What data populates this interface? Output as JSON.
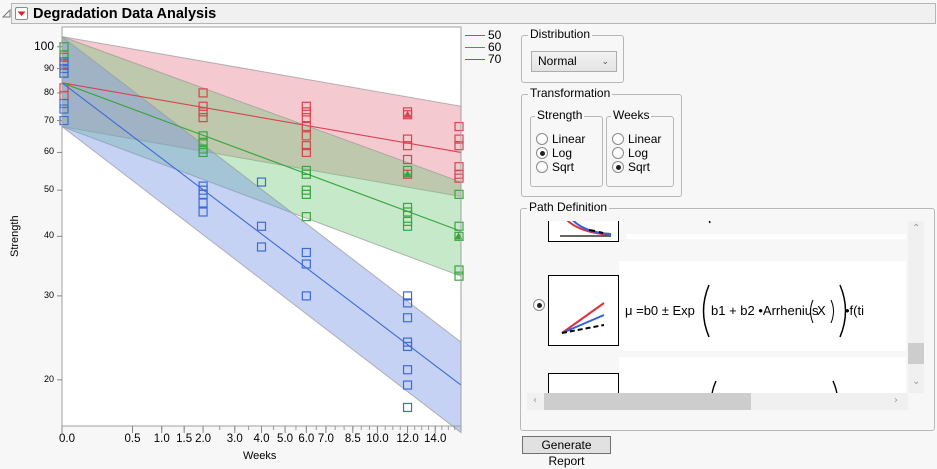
{
  "header": {
    "title": "Degradation Data Analysis",
    "disclosure_icon": "triangle-expanded-icon",
    "menu_icon": "red-triangle-menu-icon"
  },
  "chart_data": {
    "type": "line",
    "title": "",
    "xlabel": "Weeks",
    "ylabel": "Strength",
    "x_scale": "sqrt",
    "y_scale": "log",
    "xlim": [
      0,
      16
    ],
    "ylim": [
      16,
      110
    ],
    "grid": false,
    "legend_position": "right",
    "x_ticks": [
      "0.0",
      "0.5",
      "1.0",
      "1.5",
      "2.0",
      "3.0",
      "4.0",
      "5.0",
      "6.0",
      "7.0",
      "8.5",
      "10.0",
      "12.0",
      "14.0"
    ],
    "x_tick_values": [
      0,
      0.5,
      1.0,
      1.5,
      2.0,
      3.0,
      4.0,
      5.0,
      6.0,
      7.0,
      8.5,
      10.0,
      12.0,
      14.0
    ],
    "y_ticks": [
      "100",
      "90",
      "80",
      "70",
      "60",
      "50",
      "40",
      "30",
      "20"
    ],
    "y_tick_values": [
      100,
      90,
      80,
      70,
      60,
      50,
      40,
      30,
      20
    ],
    "legend": [
      "50",
      "60",
      "70"
    ],
    "series": [
      {
        "name": "50",
        "color": "#d9434f",
        "fit_line": [
          [
            0,
            84
          ],
          [
            16,
            60
          ]
        ],
        "band_upper": [
          [
            0,
            105
          ],
          [
            16,
            75
          ]
        ],
        "band_lower": [
          [
            0,
            68
          ],
          [
            16,
            48.5
          ]
        ],
        "points": [
          [
            0,
            95
          ],
          [
            0,
            92
          ],
          [
            0,
            82
          ],
          [
            0,
            79
          ],
          [
            2,
            80
          ],
          [
            2,
            75
          ],
          [
            2,
            73
          ],
          [
            2,
            71
          ],
          [
            6,
            75
          ],
          [
            6,
            73
          ],
          [
            6,
            71
          ],
          [
            6,
            68
          ],
          [
            6,
            65
          ],
          [
            6,
            62
          ],
          [
            6,
            60
          ],
          [
            12,
            73
          ],
          [
            12,
            72
          ],
          [
            12,
            64
          ],
          [
            12,
            62
          ],
          [
            12,
            58
          ],
          [
            12,
            54
          ],
          [
            16,
            68
          ],
          [
            16,
            64
          ],
          [
            16,
            62
          ],
          [
            16,
            56
          ],
          [
            16,
            54
          ],
          [
            16,
            53
          ]
        ]
      },
      {
        "name": "60",
        "color": "#3aa53f",
        "fit_line": [
          [
            0,
            84
          ],
          [
            16,
            41
          ]
        ],
        "band_upper": [
          [
            0,
            105
          ],
          [
            16,
            52
          ]
        ],
        "band_lower": [
          [
            0,
            68
          ],
          [
            16,
            33
          ]
        ],
        "points": [
          [
            0,
            100
          ],
          [
            0,
            96
          ],
          [
            0,
            88
          ],
          [
            2,
            65
          ],
          [
            2,
            63
          ],
          [
            2,
            61
          ],
          [
            2,
            60
          ],
          [
            6,
            55
          ],
          [
            6,
            54
          ],
          [
            6,
            50
          ],
          [
            6,
            49
          ],
          [
            6,
            44
          ],
          [
            12,
            55
          ],
          [
            12,
            46
          ],
          [
            12,
            45
          ],
          [
            12,
            43
          ],
          [
            12,
            42
          ],
          [
            16,
            42
          ],
          [
            16,
            40
          ],
          [
            16,
            34
          ],
          [
            16,
            33
          ],
          [
            16,
            49
          ]
        ]
      },
      {
        "name": "70",
        "color": "#3d6bd6",
        "fit_line": [
          [
            0,
            84
          ],
          [
            16,
            19.5
          ]
        ],
        "band_upper": [
          [
            0,
            105
          ],
          [
            16,
            24
          ]
        ],
        "band_lower": [
          [
            0,
            68
          ],
          [
            16,
            15.5
          ]
        ],
        "points": [
          [
            0,
            93
          ],
          [
            0,
            90
          ],
          [
            0,
            88
          ],
          [
            0,
            76
          ],
          [
            0,
            74
          ],
          [
            0,
            70
          ],
          [
            2,
            51
          ],
          [
            2,
            50
          ],
          [
            2,
            49
          ],
          [
            2,
            47
          ],
          [
            2,
            45
          ],
          [
            4,
            52
          ],
          [
            4,
            42
          ],
          [
            4,
            38
          ],
          [
            6,
            37
          ],
          [
            6,
            35
          ],
          [
            6,
            30
          ],
          [
            12,
            30
          ],
          [
            12,
            29
          ],
          [
            12,
            27
          ],
          [
            12,
            24
          ],
          [
            12,
            23.5
          ],
          [
            12,
            21
          ],
          [
            12,
            19.5
          ],
          [
            12,
            17.5
          ]
        ]
      }
    ]
  },
  "controls": {
    "distribution": {
      "label": "Distribution",
      "selected": "Normal"
    },
    "transformation": {
      "label": "Transformation",
      "strength": {
        "label": "Strength",
        "options": [
          "Linear",
          "Log",
          "Sqrt"
        ],
        "selected": "Log"
      },
      "weeks": {
        "label": "Weeks",
        "options": [
          "Linear",
          "Log",
          "Sqrt"
        ],
        "selected": "Sqrt"
      }
    },
    "path_definition": {
      "label": "Path Definition",
      "formula_mu": "μ =b0 ± Exp",
      "formula_inner": "b1 + b2 •Arrhenius",
      "formula_x": "X",
      "formula_tail": "•f(ti",
      "selected_index": 1
    },
    "generate_button": "Generate Report"
  }
}
